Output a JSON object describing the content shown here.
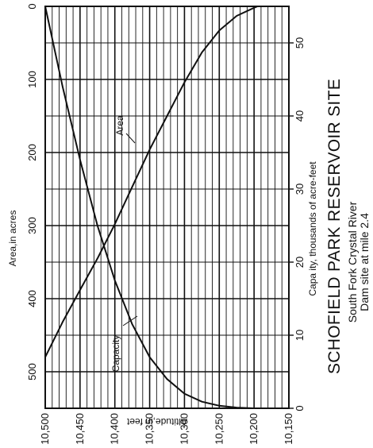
{
  "chart_data": {
    "type": "line",
    "title": "SCHOFIELD PARK RESERVOIR SITE",
    "subtitle_lines": [
      "South Fork Crystal River",
      "Dam site at mile 2.4"
    ],
    "altitude_axis": {
      "label": "Altitude,in feet",
      "range": [
        10150,
        10500
      ],
      "ticks": [
        10500,
        10450,
        10400,
        10350,
        10300,
        10250,
        10200,
        10150
      ],
      "tick_labels": [
        "10,500",
        "10,450",
        "10,400",
        "10,350",
        "10,300",
        "10,250",
        "10,200",
        "10,150"
      ]
    },
    "area_axis": {
      "label": "Area,in acres",
      "range": [
        0,
        550
      ],
      "ticks": [
        0,
        100,
        200,
        300,
        400,
        500
      ],
      "tick_labels": [
        "0",
        "100",
        "200",
        "300",
        "400",
        "500"
      ]
    },
    "capacity_axis": {
      "label": "Capa ity, thousands of acre-feet",
      "range": [
        0,
        55
      ],
      "ticks": [
        0,
        10,
        20,
        30,
        40,
        50
      ],
      "tick_labels": [
        "0",
        "10",
        "20",
        "30",
        "40",
        "50"
      ]
    },
    "grid": true,
    "series": [
      {
        "name": "Area",
        "axis": "area",
        "points": [
          {
            "altitude": 10500,
            "value": 480
          },
          {
            "altitude": 10475,
            "value": 432
          },
          {
            "altitude": 10450,
            "value": 388
          },
          {
            "altitude": 10425,
            "value": 345
          },
          {
            "altitude": 10400,
            "value": 298
          },
          {
            "altitude": 10375,
            "value": 247
          },
          {
            "altitude": 10350,
            "value": 196
          },
          {
            "altitude": 10325,
            "value": 150
          },
          {
            "altitude": 10300,
            "value": 104
          },
          {
            "altitude": 10275,
            "value": 63
          },
          {
            "altitude": 10250,
            "value": 33
          },
          {
            "altitude": 10225,
            "value": 13
          },
          {
            "altitude": 10200,
            "value": 2
          },
          {
            "altitude": 10195,
            "value": 0
          }
        ]
      },
      {
        "name": "Capacity",
        "axis": "capacity",
        "points": [
          {
            "altitude": 10500,
            "value": 55
          },
          {
            "altitude": 10475,
            "value": 44
          },
          {
            "altitude": 10450,
            "value": 34
          },
          {
            "altitude": 10425,
            "value": 25
          },
          {
            "altitude": 10400,
            "value": 17.5
          },
          {
            "altitude": 10375,
            "value": 11.5
          },
          {
            "altitude": 10350,
            "value": 7
          },
          {
            "altitude": 10325,
            "value": 4
          },
          {
            "altitude": 10300,
            "value": 2
          },
          {
            "altitude": 10275,
            "value": 0.9
          },
          {
            "altitude": 10250,
            "value": 0.35
          },
          {
            "altitude": 10225,
            "value": 0.1
          },
          {
            "altitude": 10200,
            "value": 0
          }
        ]
      }
    ]
  }
}
